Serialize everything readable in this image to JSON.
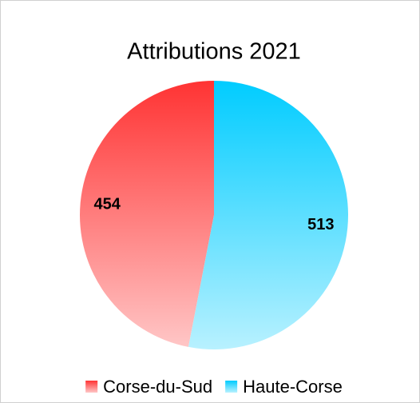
{
  "chart_data": {
    "type": "pie",
    "title": "Attributions 2021",
    "categories": [
      "Corse-du-Sud",
      "Haute-Corse"
    ],
    "values": [
      454,
      513
    ],
    "colors": [
      "#ff3333",
      "#00ccff"
    ],
    "legend": "bottom"
  }
}
